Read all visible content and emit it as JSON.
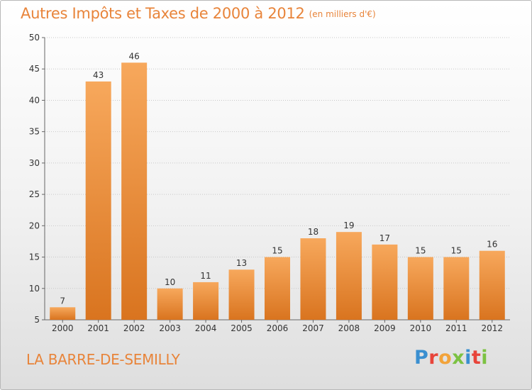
{
  "header": {
    "title": "Autres Impôts et Taxes de 2000 à 2012",
    "unit": "(en milliers d'€)"
  },
  "footer": {
    "place": "LA BARRE-DE-SEMILLY",
    "logo_letters": [
      "P",
      "r",
      "o",
      "x",
      "i",
      "t",
      "i"
    ]
  },
  "colors": {
    "accent": "#e8843a",
    "bar_light": "#f7a85c",
    "bar_dark": "#d9741f",
    "logo": [
      "#3a8fd0",
      "#e8443a",
      "#f2a33a",
      "#7cc242",
      "#3a8fd0",
      "#e8443a",
      "#7cc242"
    ]
  },
  "chart_data": {
    "type": "bar",
    "categories": [
      "2000",
      "2001",
      "2002",
      "2003",
      "2004",
      "2005",
      "2006",
      "2007",
      "2008",
      "2009",
      "2010",
      "2011",
      "2012"
    ],
    "values": [
      7,
      43,
      46,
      10,
      11,
      13,
      15,
      18,
      19,
      17,
      15,
      15,
      16
    ],
    "title": "Autres Impôts et Taxes de 2000 à 2012",
    "xlabel": "",
    "ylabel": "",
    "ylim": [
      5,
      50
    ],
    "yticks": [
      5,
      10,
      15,
      20,
      25,
      30,
      35,
      40,
      45,
      50
    ],
    "grid": true
  }
}
